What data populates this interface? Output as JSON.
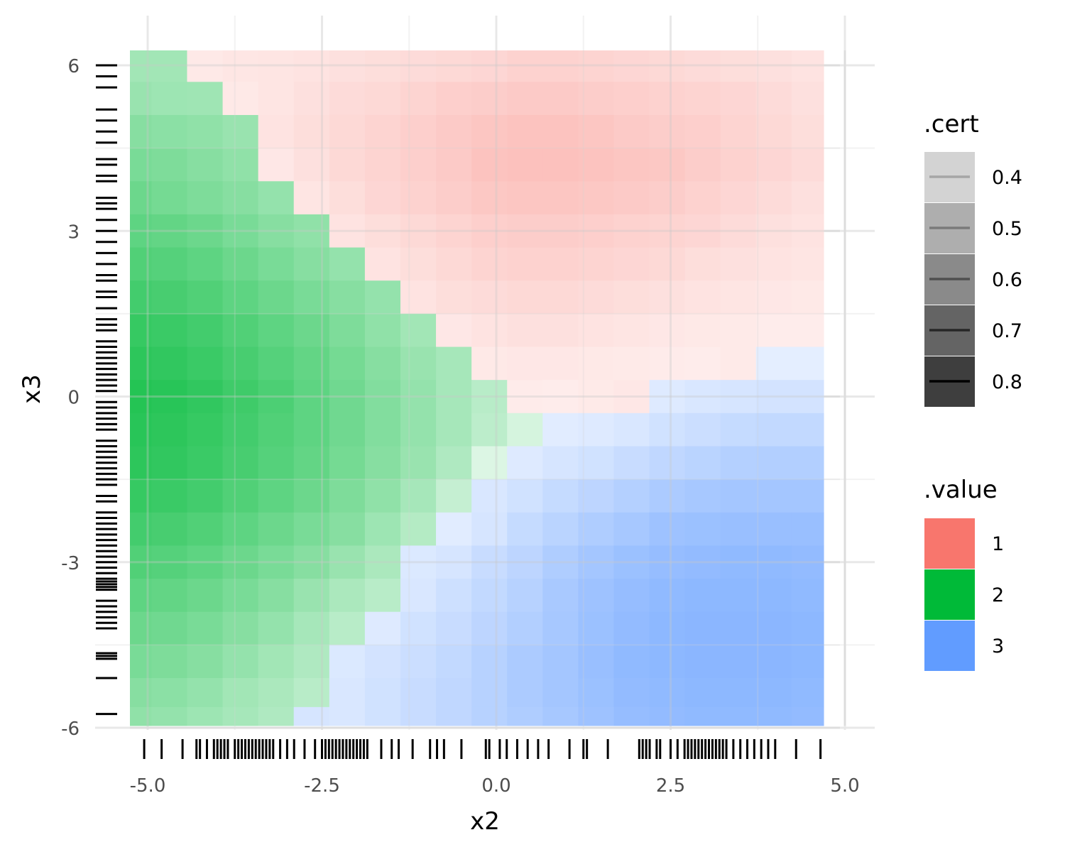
{
  "chart_data": {
    "type": "heatmap",
    "title": "",
    "xlabel": "x2",
    "ylabel": "x3",
    "xlim": [
      -5.25,
      4.95
    ],
    "ylim": [
      -6.0,
      6.3
    ],
    "x_ticks": [
      -5.0,
      -2.5,
      0.0,
      2.5,
      5.0
    ],
    "x_tick_labels": [
      "-5.0",
      "-2.5",
      "0.0",
      "2.5",
      "5.0"
    ],
    "y_ticks": [
      -6,
      -3,
      0,
      3,
      6
    ],
    "y_tick_labels": [
      "-6",
      "-3",
      "0",
      "3",
      "6"
    ],
    "grid": true,
    "x_grid": [
      -5.2,
      -4.69,
      -4.18,
      -3.67,
      -3.16,
      -2.65,
      -2.14,
      -1.63,
      -1.12,
      -0.61,
      -0.1,
      0.41,
      0.92,
      1.43,
      1.94,
      2.45,
      2.96,
      3.47,
      3.98,
      4.49,
      4.9
    ],
    "y_grid": [
      6.0,
      5.4,
      4.8,
      4.2,
      3.6,
      3.0,
      2.4,
      1.8,
      1.2,
      0.6,
      0.0,
      -0.6,
      -1.2,
      -1.8,
      -2.4,
      -3.0,
      -3.6,
      -4.2,
      -4.8,
      -5.4,
      -5.85
    ],
    "value_grid": [
      "22111111111111111111",
      "22211111111111111111",
      "22221111111111111111",
      "22221111111111111111",
      "22222111111111111111",
      "22222211111111111111",
      "22222221111111111111",
      "22222222111111111111",
      "22222222211111111111",
      "22222222221111111133",
      "22222222222111133333",
      "22222222222233333333",
      "22222222222333333333",
      "22222222223333333333",
      "22222222233333333333",
      "22222222333333333333",
      "22222222333333333333",
      "22222223333333333333",
      "22222233333333333333",
      "22222233333333333333",
      "22222333333333333333"
    ],
    "cert_grid": [
      "28,28,05,07,08,10,12,14,16,18,20,24,24,22,20,18,16,14,12,10",
      "32,30,29,05,08,12,16,18,22,26,28,30,30,28,26,24,22,20,16,12",
      "40,38,36,32,10,14,18,22,26,30,34,36,36,34,30,28,26,22,18,14",
      "46,44,40,36,06,12,18,22,26,30,36,38,38,36,34,32,28,24,20,16",
      "52,48,44,40,34,08,14,20,24,28,32,34,34,32,30,28,24,20,16,12",
      "58,56,52,46,40,36,10,14,18,22,26,28,28,26,24,22,20,16,12,10",
      "64,62,58,52,46,40,34,10,14,18,22,24,24,22,20,18,14,12,10,08",
      "70,68,64,58,52,46,40,34,10,14,16,18,18,16,14,12,10,08,06,05",
      "76,74,70,64,58,52,44,36,28,06,10,12,12,10,08,06,05,04,02,02",
      "80,78,74,68,62,56,48,40,32,26,05,06,06,05,04,03,02,04,06,06",
      "84,82,78,72,66,58,50,42,34,26,18,03,02,04,06,10,14,16,18,18",
      "82,80,76,70,64,58,50,42,34,26,16,05,08,10,14,20,24,28,30,30",
      "80,78,74,68,62,56,48,40,32,22,02,10,16,20,26,32,36,40,42,42",
      "76,74,70,64,58,52,44,36,26,12,14,20,28,34,40,46,50,52,52,52",
      "70,68,64,58,52,46,40,30,20,08,16,28,36,44,50,56,58,60,60,60",
      "64,62,58,52,46,40,32,24,12,16,26,34,44,52,58,62,64,66,66,64",
      "58,56,52,46,40,32,24,18,14,22,30,38,48,56,62,66,68,68,68,66",
      "52,50,46,40,34,26,18,10,20,26,34,42,50,58,64,68,70,70,70,68",
      "46,44,40,34,28,22,12,18,24,30,38,46,52,60,66,68,70,70,70,68",
      "40,38,34,28,24,18,14,20,26,32,38,46,52,58,64,66,68,68,68,66",
      "36,34,30,26,22,16,14,20,26,32,38,44,50,56,62,64,66,66,66,64"
    ],
    "rug_x": [
      -5.05,
      -4.8,
      -4.5,
      -4.3,
      -4.25,
      -4.15,
      -4.05,
      -4.0,
      -3.95,
      -3.9,
      -3.85,
      -3.75,
      -3.7,
      -3.65,
      -3.6,
      -3.55,
      -3.5,
      -3.45,
      -3.4,
      -3.35,
      -3.3,
      -3.25,
      -3.2,
      -3.1,
      -3.0,
      -2.9,
      -2.75,
      -2.6,
      -2.5,
      -2.45,
      -2.4,
      -2.35,
      -2.3,
      -2.25,
      -2.2,
      -2.15,
      -2.1,
      -2.05,
      -2.0,
      -1.95,
      -1.9,
      -1.85,
      -1.65,
      -1.5,
      -1.4,
      -1.2,
      -0.95,
      -0.85,
      -0.75,
      -0.5,
      -0.15,
      -0.1,
      0.05,
      0.15,
      0.3,
      0.45,
      0.6,
      0.75,
      1.05,
      1.25,
      1.3,
      1.6,
      2.05,
      2.1,
      2.15,
      2.2,
      2.3,
      2.35,
      2.5,
      2.6,
      2.7,
      2.75,
      2.8,
      2.85,
      2.9,
      2.95,
      3.0,
      3.05,
      3.1,
      3.15,
      3.2,
      3.25,
      3.3,
      3.4,
      3.5,
      3.6,
      3.7,
      3.8,
      3.9,
      4.0,
      4.3,
      4.65
    ],
    "rug_y": [
      -5.75,
      -5.1,
      -4.75,
      -4.7,
      -4.65,
      -4.2,
      -4.1,
      -4.0,
      -3.9,
      -3.8,
      -3.7,
      -3.5,
      -3.45,
      -3.4,
      -3.35,
      -3.3,
      -3.2,
      -3.1,
      -3.0,
      -2.9,
      -2.8,
      -2.7,
      -2.6,
      -2.5,
      -2.4,
      -2.3,
      -2.2,
      -2.1,
      -1.9,
      -1.8,
      -1.6,
      -1.5,
      -1.4,
      -1.3,
      -1.2,
      -1.1,
      -1.0,
      -0.9,
      -0.8,
      -0.6,
      -0.5,
      -0.4,
      -0.3,
      -0.2,
      -0.1,
      0.1,
      0.2,
      0.3,
      0.4,
      0.5,
      0.6,
      0.7,
      0.8,
      0.9,
      1.0,
      1.2,
      1.3,
      1.4,
      1.6,
      1.8,
      1.9,
      2.1,
      2.2,
      2.4,
      2.6,
      2.8,
      3.0,
      3.2,
      3.4,
      3.5,
      3.6,
      3.9,
      4.0,
      4.2,
      4.3,
      4.6,
      4.8,
      5.0,
      5.2,
      5.6,
      5.8,
      6.0
    ],
    "legend_cert": {
      "title": ".cert",
      "levels": [
        0.4,
        0.5,
        0.6,
        0.7,
        0.8
      ],
      "labels": [
        "0.4",
        "0.5",
        "0.6",
        "0.7",
        "0.8"
      ],
      "fill_colors": [
        "#d3d3d3",
        "#aeaeae",
        "#8a8a8a",
        "#646464",
        "#3e3e3e"
      ],
      "line_colors": [
        "#a6a6a6",
        "#7a7a7a",
        "#4f4f4f",
        "#262626",
        "#000000"
      ]
    },
    "legend_value": {
      "title": ".value",
      "labels": [
        "1",
        "2",
        "3"
      ],
      "colors": [
        "#F8766D",
        "#00BA38",
        "#619CFF"
      ]
    },
    "colors": {
      "1": "#F8766D",
      "2": "#00BA38",
      "3": "#619CFF",
      "grid_major": "#e8e8e8",
      "grid_minor": "#f2f2f2",
      "tick_text": "#4d4d4d",
      "rug": "#000000"
    }
  }
}
